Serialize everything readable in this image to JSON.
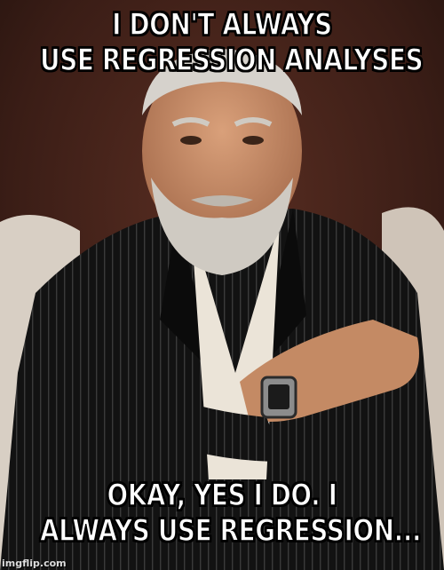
{
  "meme": {
    "top_text_line1": "I DON'T ALWAYS",
    "top_text_line2": "USE REGRESSION ANALYSES",
    "bottom_text_line1": "OKAY, YES I DO. I",
    "bottom_text_line2": "ALWAYS USE REGRESSION...",
    "watermark": "imgflip.com"
  },
  "colors": {
    "background": "#2a1712",
    "jacket": "#111111",
    "shirt": "#e9e2d6",
    "skin": "#c98f6a",
    "beard": "#cfcac2",
    "text": "#ffffff"
  }
}
